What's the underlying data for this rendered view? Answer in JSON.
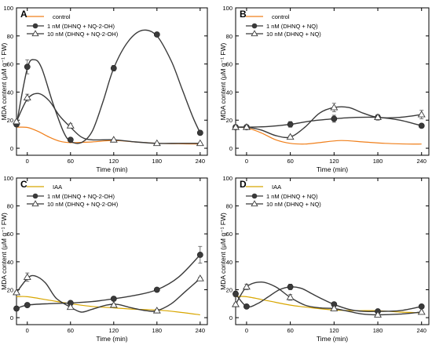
{
  "chart_data": [
    {
      "panel": "A",
      "type": "line",
      "xlabel": "Time (min)",
      "ylabel": "MDA content (μM g⁻¹ FW)",
      "xlim": [
        -15,
        250
      ],
      "ylim": [
        -5,
        100
      ],
      "xticks": [
        0,
        60,
        120,
        180,
        240
      ],
      "yticks": [
        0,
        20,
        40,
        60,
        80,
        100
      ],
      "legend_position": "top-left",
      "series": [
        {
          "name": "control",
          "style": "line",
          "color": "#f07f1a",
          "curve": [
            [
              -15,
              15
            ],
            [
              0,
              14.8
            ],
            [
              15,
              12
            ],
            [
              30,
              8
            ],
            [
              45,
              5
            ],
            [
              60,
              4
            ],
            [
              90,
              4.5
            ],
            [
              120,
              5.5
            ],
            [
              150,
              4.5
            ],
            [
              180,
              3.5
            ],
            [
              210,
              3.2
            ],
            [
              240,
              3
            ]
          ]
        },
        {
          "name": "1 nM (DHNQ + NQ-2-OH)",
          "style": "filled-circle",
          "color": "#3a3a3a",
          "x": [
            -15,
            0,
            60,
            120,
            180,
            240
          ],
          "y": [
            17,
            58,
            6,
            57,
            81,
            11
          ],
          "err": [
            1.5,
            5,
            1,
            2,
            1,
            1
          ],
          "curve": [
            [
              -15,
              17
            ],
            [
              0,
              57
            ],
            [
              10,
              63
            ],
            [
              20,
              57
            ],
            [
              35,
              33
            ],
            [
              50,
              12
            ],
            [
              60,
              5
            ],
            [
              75,
              4
            ],
            [
              90,
              12
            ],
            [
              105,
              33
            ],
            [
              120,
              57
            ],
            [
              140,
              76
            ],
            [
              160,
              84
            ],
            [
              180,
              80
            ],
            [
              200,
              62
            ],
            [
              215,
              42
            ],
            [
              230,
              22
            ],
            [
              240,
              11
            ]
          ]
        },
        {
          "name": "10 nM (DHNQ + NQ-2-OH)",
          "style": "open-triangle",
          "color": "#3a3a3a",
          "x": [
            -15,
            0,
            60,
            120,
            180,
            240
          ],
          "y": [
            19,
            36,
            16,
            6,
            3.5,
            3.5
          ],
          "err": [
            1,
            2.5,
            1.5,
            0.5,
            0.5,
            0.5
          ],
          "curve": [
            [
              -15,
              19
            ],
            [
              0,
              35
            ],
            [
              15,
              39
            ],
            [
              30,
              34
            ],
            [
              45,
              23
            ],
            [
              60,
              15
            ],
            [
              75,
              8
            ],
            [
              90,
              6
            ],
            [
              120,
              6
            ],
            [
              150,
              4.5
            ],
            [
              180,
              3.5
            ],
            [
              210,
              3.5
            ],
            [
              240,
              3.5
            ]
          ]
        }
      ]
    },
    {
      "panel": "B",
      "type": "line",
      "xlabel": "Time (min)",
      "ylabel": "MDA content (μM g⁻¹ FW)",
      "xlim": [
        -15,
        250
      ],
      "ylim": [
        -5,
        100
      ],
      "xticks": [
        0,
        60,
        120,
        180,
        240
      ],
      "yticks": [
        0,
        20,
        40,
        60,
        80,
        100
      ],
      "legend_position": "top-left",
      "series": [
        {
          "name": "control",
          "style": "line",
          "color": "#f07f1a",
          "curve": [
            [
              -15,
              15
            ],
            [
              0,
              14.5
            ],
            [
              20,
              11
            ],
            [
              40,
              6
            ],
            [
              60,
              3.5
            ],
            [
              80,
              3
            ],
            [
              100,
              4
            ],
            [
              130,
              5.5
            ],
            [
              160,
              4.5
            ],
            [
              190,
              3.5
            ],
            [
              220,
              3
            ],
            [
              240,
              3
            ]
          ]
        },
        {
          "name": "1 nM (DHNQ + NQ)",
          "style": "filled-circle",
          "color": "#3a3a3a",
          "x": [
            -15,
            0,
            60,
            120,
            180,
            240
          ],
          "y": [
            15,
            15,
            17,
            21,
            22,
            16
          ],
          "err": [
            1,
            1,
            2,
            2.5,
            1,
            1
          ],
          "curve": [
            [
              -15,
              15
            ],
            [
              0,
              15
            ],
            [
              30,
              15.5
            ],
            [
              60,
              17
            ],
            [
              90,
              19.5
            ],
            [
              120,
              21
            ],
            [
              150,
              22
            ],
            [
              180,
              22
            ],
            [
              210,
              20
            ],
            [
              240,
              16
            ]
          ]
        },
        {
          "name": "10 nM (DHNQ + NQ)",
          "style": "open-triangle",
          "color": "#3a3a3a",
          "x": [
            -15,
            0,
            60,
            120,
            180,
            240
          ],
          "y": [
            15,
            15,
            8,
            29,
            22,
            24
          ],
          "err": [
            1,
            1,
            1,
            3,
            2,
            3
          ],
          "curve": [
            [
              -15,
              15
            ],
            [
              0,
              15
            ],
            [
              20,
              13
            ],
            [
              40,
              9
            ],
            [
              60,
              8
            ],
            [
              80,
              15
            ],
            [
              100,
              25
            ],
            [
              120,
              29
            ],
            [
              140,
              29
            ],
            [
              160,
              25
            ],
            [
              180,
              22
            ],
            [
              210,
              22
            ],
            [
              240,
              24
            ]
          ]
        }
      ]
    },
    {
      "panel": "C",
      "type": "line",
      "xlabel": "Time (min)",
      "ylabel": "MDA content (μM g⁻¹ FW)",
      "xlim": [
        -15,
        250
      ],
      "ylim": [
        -5,
        100
      ],
      "xticks": [
        0,
        60,
        120,
        180,
        240
      ],
      "yticks": [
        0,
        20,
        40,
        60,
        80,
        100
      ],
      "legend_position": "top-left",
      "series": [
        {
          "name": "IAA",
          "style": "line",
          "color": "#d8a600",
          "curve": [
            [
              -15,
              15
            ],
            [
              0,
              15
            ],
            [
              30,
              12.5
            ],
            [
              60,
              10
            ],
            [
              90,
              8
            ],
            [
              120,
              7
            ],
            [
              150,
              6
            ],
            [
              180,
              5.5
            ],
            [
              210,
              4
            ],
            [
              240,
              2
            ]
          ]
        },
        {
          "name": "1 nM (DHNQ + NQ-2-OH)",
          "style": "filled-circle",
          "color": "#3a3a3a",
          "x": [
            -15,
            0,
            60,
            120,
            180,
            240
          ],
          "y": [
            6.5,
            9,
            10.5,
            13.5,
            20,
            45
          ],
          "err": [
            1.5,
            1,
            1,
            1.5,
            1,
            6
          ],
          "curve": [
            [
              -15,
              6.5
            ],
            [
              0,
              9
            ],
            [
              30,
              10
            ],
            [
              60,
              10.5
            ],
            [
              90,
              11.5
            ],
            [
              120,
              13.5
            ],
            [
              150,
              16
            ],
            [
              180,
              20
            ],
            [
              210,
              29
            ],
            [
              240,
              45
            ]
          ]
        },
        {
          "name": "10 nM (DHNQ + NQ-2-OH)",
          "style": "open-triangle",
          "color": "#3a3a3a",
          "x": [
            -15,
            0,
            60,
            120,
            180,
            240
          ],
          "y": [
            18,
            29,
            7.5,
            9,
            5,
            28
          ],
          "err": [
            1,
            3,
            1,
            1,
            1,
            1
          ],
          "curve": [
            [
              -15,
              18
            ],
            [
              0,
              28
            ],
            [
              10,
              30
            ],
            [
              25,
              25
            ],
            [
              40,
              14
            ],
            [
              60,
              7.5
            ],
            [
              75,
              4
            ],
            [
              90,
              6
            ],
            [
              110,
              9
            ],
            [
              125,
              9.5
            ],
            [
              145,
              7
            ],
            [
              165,
              5
            ],
            [
              180,
              5
            ],
            [
              200,
              10
            ],
            [
              220,
              19
            ],
            [
              240,
              28
            ]
          ]
        }
      ]
    },
    {
      "panel": "D",
      "type": "line",
      "xlabel": "Time (min)",
      "ylabel": "MDA content (μM g⁻¹ FW)",
      "xlim": [
        -15,
        250
      ],
      "ylim": [
        -5,
        100
      ],
      "xticks": [
        0,
        60,
        120,
        180,
        240
      ],
      "yticks": [
        0,
        20,
        40,
        60,
        80,
        100
      ],
      "legend_position": "top-left",
      "series": [
        {
          "name": "IAA",
          "style": "line",
          "color": "#d8a600",
          "curve": [
            [
              -15,
              15
            ],
            [
              0,
              15
            ],
            [
              30,
              12
            ],
            [
              60,
              9
            ],
            [
              90,
              7
            ],
            [
              120,
              5.5
            ],
            [
              150,
              5
            ],
            [
              180,
              5
            ],
            [
              210,
              4
            ],
            [
              240,
              3.5
            ]
          ]
        },
        {
          "name": "1 nM (DHNQ + NQ)",
          "style": "filled-circle",
          "color": "#3a3a3a",
          "x": [
            -15,
            0,
            60,
            120,
            180,
            240
          ],
          "y": [
            17,
            8,
            22,
            9.5,
            4.5,
            8
          ],
          "err": [
            2,
            1,
            2,
            1,
            1,
            1
          ],
          "curve": [
            [
              -15,
              17
            ],
            [
              0,
              8
            ],
            [
              15,
              10
            ],
            [
              30,
              15
            ],
            [
              45,
              20
            ],
            [
              60,
              22
            ],
            [
              75,
              21
            ],
            [
              90,
              17
            ],
            [
              105,
              13
            ],
            [
              120,
              9.5
            ],
            [
              140,
              6
            ],
            [
              160,
              4.5
            ],
            [
              180,
              4.5
            ],
            [
              210,
              5
            ],
            [
              240,
              8
            ]
          ]
        },
        {
          "name": "10 nM (DHNQ + NQ)",
          "style": "open-triangle",
          "color": "#3a3a3a",
          "x": [
            -15,
            0,
            60,
            120,
            180,
            240
          ],
          "y": [
            9.5,
            22,
            14.5,
            6.5,
            2,
            4
          ],
          "err": [
            1,
            2,
            2,
            1,
            1,
            1
          ],
          "curve": [
            [
              -15,
              9.5
            ],
            [
              0,
              22
            ],
            [
              20,
              25.5
            ],
            [
              40,
              22
            ],
            [
              60,
              14.5
            ],
            [
              80,
              9
            ],
            [
              100,
              7
            ],
            [
              120,
              6.5
            ],
            [
              140,
              4.5
            ],
            [
              160,
              2.5
            ],
            [
              180,
              2
            ],
            [
              210,
              2.5
            ],
            [
              240,
              4
            ]
          ]
        }
      ]
    }
  ]
}
